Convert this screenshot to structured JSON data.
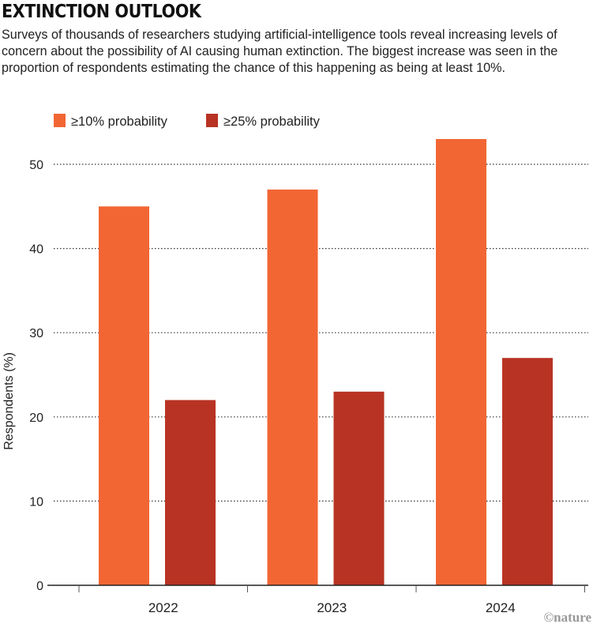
{
  "chart_data": {
    "type": "bar",
    "title": "EXTINCTION OUTLOOK",
    "subtitle": "Surveys of thousands of researchers studying artificial-intelligence tools reveal increasing levels of concern about the possibility of AI causing human extinction. The biggest increase was seen in the proportion of respondents estimating the chance of this happening as being at least 10%.",
    "categories": [
      "2022",
      "2023",
      "2024"
    ],
    "series": [
      {
        "name": "≥10% probability",
        "color": "#f26634",
        "values": [
          45,
          47,
          53
        ]
      },
      {
        "name": "≥25% probability",
        "color": "#b83323",
        "values": [
          22,
          23,
          27
        ]
      }
    ],
    "xlabel": "",
    "ylabel": "Respondents (%)",
    "ylim": [
      0,
      55
    ],
    "yticks": [
      0,
      10,
      20,
      30,
      40,
      50
    ],
    "grid": true,
    "legend": "top-left",
    "credit": "©nature"
  }
}
